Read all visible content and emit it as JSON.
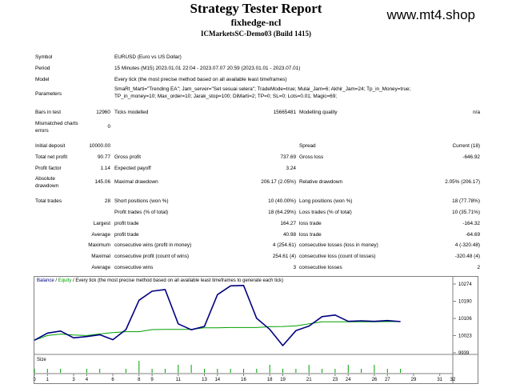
{
  "header": {
    "title": "Strategy Tester Report",
    "ea_name": "fixhedge-ncl",
    "server": "ICMarketsSC-Demo03 (Build 1415)",
    "watermark": "www.mt4.shop"
  },
  "info": {
    "symbol_label": "Symbol",
    "symbol_value": "EURUSD (Euro vs US Dollar)",
    "period_label": "Period",
    "period_value": "15 Minutes (M15) 2023.01.01 22:04 - 2023.07.07 20:59 (2023.01.01 - 2023.07.01)",
    "model_label": "Model",
    "model_value": "Every tick (the most precise method based on all available least timeframes)",
    "parameters_label": "Parameters",
    "parameters_line1": "SmaRt_Marti=\"Trending EA\"; Jam_server=\"Set sesuai selera\"; TradeMode=true; Mulai_Jam=6; Akhir_Jam=24; Tp_in_Money=true;",
    "parameters_line2": "TP_in_money=10; Max_order=10; Jarak_stop=100; DiMarti=2; TP=0; SL=0; Lots=0.01; Magic=69;"
  },
  "stats": {
    "bars_label": "Bars in test",
    "bars_value": "12960",
    "ticks_label": "Ticks modelled",
    "ticks_value": "15665481",
    "quality_label": "Modelling quality",
    "quality_value": "n/a",
    "mismatch_label_1": "Mismatched charts",
    "mismatch_label_2": "errors",
    "mismatch_value": "0",
    "initial_deposit_label": "Initial deposit",
    "initial_deposit_value": "10000.00",
    "spread_label": "Spread",
    "spread_value": "Current (18)",
    "net_profit_label": "Total net profit",
    "net_profit_value": "90.77",
    "gross_profit_label": "Gross profit",
    "gross_profit_value": "737.69",
    "gross_loss_label": "Gross loss",
    "gross_loss_value": "-646.92",
    "profit_factor_label": "Profit factor",
    "profit_factor_value": "1.14",
    "expected_payoff_label": "Expected payoff",
    "expected_payoff_value": "3.24",
    "abs_dd_label_1": "Absolute",
    "abs_dd_label_2": "drawdown",
    "abs_dd_value": "145.06",
    "max_dd_label": "Maximal drawdown",
    "max_dd_value": "206.17 (2.05%)",
    "rel_dd_label": "Relative drawdown",
    "rel_dd_value": "2.05% (206.17)",
    "total_trades_label": "Total trades",
    "total_trades_value": "28",
    "short_label": "Short positions (won %)",
    "short_value": "10 (40.00%)",
    "long_label": "Long positions (won %)",
    "long_value": "18 (77.78%)",
    "profit_trades_label": "Profit trades (% of total)",
    "profit_trades_value": "18 (64.29%)",
    "loss_trades_label": "Loss trades (% of total)",
    "loss_trades_value": "10 (35.71%)",
    "largest_label": "Largest",
    "largest_profit_label": "profit trade",
    "largest_profit_value": "164.27",
    "largest_loss_label": "loss trade",
    "largest_loss_value": "-164.32",
    "average_label": "Average",
    "average_profit_label": "profit trade",
    "average_profit_value": "40.98",
    "average_loss_label": "loss trade",
    "average_loss_value": "-64.69",
    "maximum_label": "Maximum",
    "max_cons_wins_label": "consecutive wins (profit in money)",
    "max_cons_wins_value": "4 (254.61)",
    "max_cons_losses_label": "consecutive losses (loss in money)",
    "max_cons_losses_value": "4 (-320.48)",
    "maximal_label": "Maximal",
    "maximal_cons_profit_label": "consecutive profit (count of wins)",
    "maximal_cons_profit_value": "254.61 (4)",
    "maximal_cons_loss_label": "consecutive loss (count of losses)",
    "maximal_cons_loss_value": "-320.48 (4)",
    "average2_label": "Average",
    "avg_cons_wins_label": "consecutive wins",
    "avg_cons_wins_value": "3",
    "avg_cons_losses_label": "consecutive losses",
    "avg_cons_losses_value": "2"
  },
  "chart_data": {
    "type": "line",
    "title": "Balance / Equity / Every tick (the most precise method based on all available least timeframes to generate each tick)",
    "title_parts": [
      "Balance",
      " / ",
      "Equity",
      " / Every tick (the most precise method based on all available least timeframes to generate each tick)"
    ],
    "x": [
      0,
      1,
      2,
      3,
      4,
      5,
      6,
      7,
      8,
      9,
      10,
      11,
      12,
      13,
      14,
      15,
      16,
      17,
      18,
      19,
      20,
      21,
      22,
      23,
      24,
      25,
      26,
      27,
      28
    ],
    "xlim": [
      0,
      32
    ],
    "x_ticks": [
      0,
      1,
      3,
      4,
      6,
      8,
      9,
      11,
      13,
      14,
      16,
      18,
      19,
      21,
      23,
      24,
      26,
      27,
      29,
      31,
      32
    ],
    "ylim": [
      9939,
      10274
    ],
    "y_ticks": [
      10274,
      10190,
      10106,
      10023,
      9939
    ],
    "series": [
      {
        "name": "Balance",
        "color": "#000080",
        "values": [
          10000,
          10035,
          10045,
          10012,
          10018,
          10027,
          10003,
          10052,
          10195,
          10239,
          10247,
          10080,
          10051,
          10067,
          10222,
          10265,
          10267,
          10107,
          10053,
          9974,
          10047,
          10069,
          10115,
          10123,
          10092,
          10095,
          10092,
          10096,
          10091
        ]
      },
      {
        "name": "Equity",
        "color": "#00a000",
        "values": [
          10000,
          10023,
          10030,
          10026,
          10023,
          10031,
          10037,
          10042,
          10042,
          10052,
          10053,
          10053,
          10053,
          10061,
          10061,
          10062,
          10062,
          10062,
          10066,
          10067,
          10070,
          10080,
          10090,
          10090,
          10090,
          10090,
          10090,
          10091,
          10091
        ]
      }
    ],
    "size_panel": {
      "label": "Size",
      "values": [
        1,
        1,
        1,
        0,
        1,
        1,
        0,
        1,
        3,
        1,
        1,
        2,
        2,
        1,
        1,
        1,
        1,
        1,
        2,
        1,
        1,
        2,
        1,
        1,
        2,
        1,
        2,
        1,
        1
      ]
    }
  }
}
